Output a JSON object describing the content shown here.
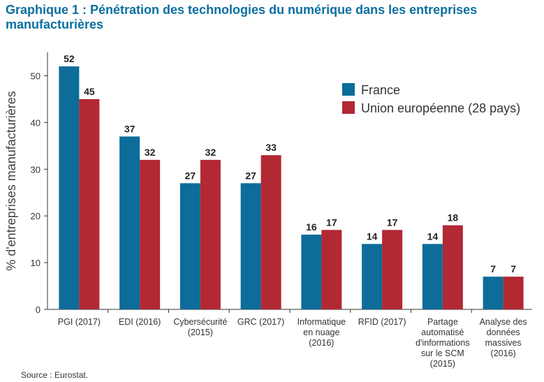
{
  "title": "Graphique 1 : Pénétration des technologies du numérique dans les entreprises manufacturières",
  "source": "Source : Eurostat.",
  "chart_data": {
    "type": "bar",
    "title": "Graphique 1 : Pénétration des technologies du numérique dans les entreprises manufacturières",
    "xlabel": "",
    "ylabel": "% d'entreprises manufacturières",
    "ylim": [
      0,
      55
    ],
    "yticks": [
      0,
      10,
      20,
      30,
      40,
      50
    ],
    "grid": false,
    "legend_position": "top-right",
    "categories": [
      [
        "PGI (2017)"
      ],
      [
        "EDI (2016)"
      ],
      [
        "Cybersécurité",
        "(2015)"
      ],
      [
        "GRC (2017)"
      ],
      [
        "Informatique",
        "en nuage",
        "(2016)"
      ],
      [
        "RFID (2017)"
      ],
      [
        "Partage",
        "automatisé",
        "d'informations",
        "sur le SCM",
        "(2015)"
      ],
      [
        "Analyse des",
        "données",
        "massives",
        "(2016)"
      ]
    ],
    "series": [
      {
        "name": "France",
        "color": "#0d6c99",
        "values": [
          52,
          37,
          27,
          27,
          16,
          14,
          14,
          7
        ]
      },
      {
        "name": "Union européenne (28 pays)",
        "color": "#b22833",
        "values": [
          45,
          32,
          32,
          33,
          17,
          17,
          18,
          7
        ]
      }
    ]
  }
}
